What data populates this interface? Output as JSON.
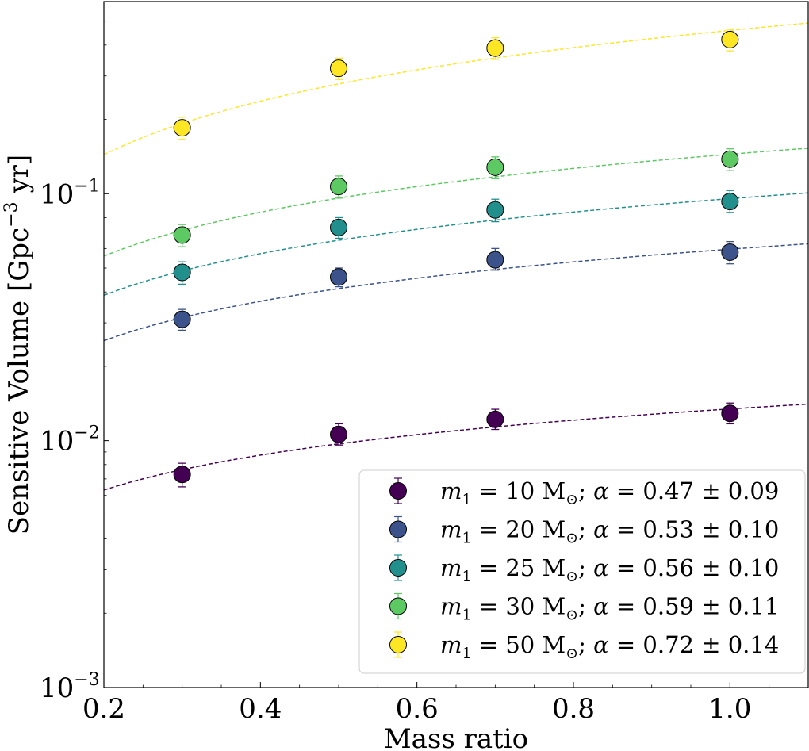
{
  "chart_data": {
    "type": "scatter",
    "xlabel": "Mass ratio",
    "ylabel_main": "Sensitive Volume [Gpc",
    "ylabel_exp": "−3",
    "ylabel_tail": " yr]",
    "xlim": [
      0.2,
      1.1
    ],
    "ylim": [
      0.001,
      0.6
    ],
    "yscale": "log",
    "grid": false,
    "legend_position": "lower-right",
    "x_ticks": [
      {
        "value": 0.2,
        "label": "0.2"
      },
      {
        "value": 0.4,
        "label": "0.4"
      },
      {
        "value": 0.6,
        "label": "0.6"
      },
      {
        "value": 0.8,
        "label": "0.8"
      },
      {
        "value": 1.0,
        "label": "1.0"
      }
    ],
    "y_ticks": [
      {
        "value": 0.001,
        "base": "10",
        "exp": "−3"
      },
      {
        "value": 0.01,
        "base": "10",
        "exp": "−2"
      },
      {
        "value": 0.1,
        "base": "10",
        "exp": "−1"
      }
    ],
    "x": [
      0.3,
      0.5,
      0.7,
      1.0
    ],
    "series": [
      {
        "name": "m1 = 10 M⊙; α = 0.47 ± 0.09",
        "m1": "10",
        "alpha": "0.47 ± 0.09",
        "color": "#440154",
        "values": [
          0.0073,
          0.0106,
          0.0122,
          0.0129
        ],
        "err_low": [
          0.0008,
          0.001,
          0.0011,
          0.0012
        ],
        "err_high": [
          0.0008,
          0.0011,
          0.0012,
          0.0013
        ],
        "fit": {
          "A": 0.01344,
          "alpha": 0.47
        }
      },
      {
        "name": "m1 = 20 M⊙; α = 0.53 ± 0.10",
        "m1": "20",
        "alpha": "0.53 ± 0.10",
        "color": "#3b528b",
        "values": [
          0.031,
          0.046,
          0.054,
          0.058
        ],
        "err_low": [
          0.003,
          0.004,
          0.005,
          0.006
        ],
        "err_high": [
          0.003,
          0.004,
          0.006,
          0.006
        ],
        "fit": {
          "A": 0.0596,
          "alpha": 0.53
        }
      },
      {
        "name": "m1 = 25 M⊙; α = 0.56 ± 0.10",
        "m1": "25",
        "alpha": "0.56 ± 0.10",
        "color": "#21908d",
        "values": [
          0.048,
          0.073,
          0.086,
          0.093
        ],
        "err_low": [
          0.005,
          0.007,
          0.009,
          0.009
        ],
        "err_high": [
          0.005,
          0.007,
          0.009,
          0.01
        ],
        "fit": {
          "A": 0.0955,
          "alpha": 0.56
        }
      },
      {
        "name": "m1 = 30 M⊙; α = 0.59 ± 0.11",
        "m1": "30",
        "alpha": "0.59 ± 0.11",
        "color": "#5dc963",
        "values": [
          0.068,
          0.107,
          0.128,
          0.138
        ],
        "err_low": [
          0.007,
          0.011,
          0.013,
          0.014
        ],
        "err_high": [
          0.007,
          0.011,
          0.013,
          0.014
        ],
        "fit": {
          "A": 0.1445,
          "alpha": 0.59
        }
      },
      {
        "name": "m1 = 50 M⊙; α = 0.72 ± 0.14",
        "m1": "50",
        "alpha": "0.72 ± 0.14",
        "color": "#fde725",
        "values": [
          0.185,
          0.322,
          0.389,
          0.421
        ],
        "err_low": [
          0.019,
          0.032,
          0.039,
          0.042
        ],
        "err_high": [
          0.019,
          0.032,
          0.039,
          0.042
        ],
        "fit": {
          "A": 0.4585,
          "alpha": 0.72
        }
      }
    ]
  }
}
